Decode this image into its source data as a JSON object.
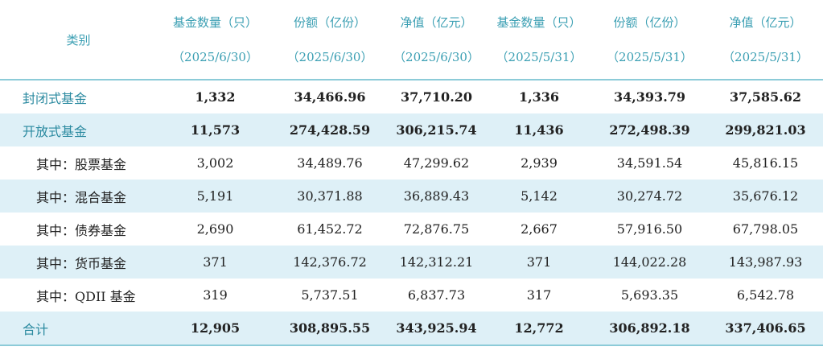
{
  "header": {
    "category_label": "类别",
    "columns": [
      {
        "title": "基金数量（只）",
        "date": "（2025/6/30）"
      },
      {
        "title": "份额（亿份）",
        "date": "（2025/6/30）"
      },
      {
        "title": "净值（亿元）",
        "date": "（2025/6/30）"
      },
      {
        "title": "基金数量（只）",
        "date": "（2025/5/31）"
      },
      {
        "title": "份额（亿份）",
        "date": "（2025/5/31）"
      },
      {
        "title": "净值（亿元）",
        "date": "（2025/5/31）"
      }
    ]
  },
  "table": {
    "rows": [
      {
        "label": "封闭式基金",
        "values": [
          "1,332",
          "34,466.96",
          "37,710.20",
          "1,336",
          "34,393.79",
          "37,585.62"
        ]
      },
      {
        "label": "开放式基金",
        "values": [
          "11,573",
          "274,428.59",
          "306,215.74",
          "11,436",
          "272,498.39",
          "299,821.03"
        ]
      },
      {
        "label": "其中：股票基金",
        "values": [
          "3,002",
          "34,489.76",
          "47,299.62",
          "2,939",
          "34,591.54",
          "45,816.15"
        ]
      },
      {
        "label": "其中：混合基金",
        "values": [
          "5,191",
          "30,371.88",
          "36,889.43",
          "5,142",
          "30,274.72",
          "35,676.12"
        ]
      },
      {
        "label": "其中：债券基金",
        "values": [
          "2,690",
          "61,452.72",
          "72,876.75",
          "2,667",
          "57,916.50",
          "67,798.05"
        ]
      },
      {
        "label": "其中：货币基金",
        "values": [
          "371",
          "142,376.72",
          "142,312.21",
          "371",
          "144,022.28",
          "143,987.93"
        ]
      },
      {
        "label": "其中：QDII 基金",
        "values": [
          "319",
          "5,737.51",
          "6,837.73",
          "317",
          "5,693.35",
          "6,542.78"
        ]
      },
      {
        "label": "合计",
        "values": [
          "12,905",
          "308,895.55",
          "343,925.94",
          "12,772",
          "306,892.18",
          "337,406.65"
        ]
      }
    ]
  }
}
